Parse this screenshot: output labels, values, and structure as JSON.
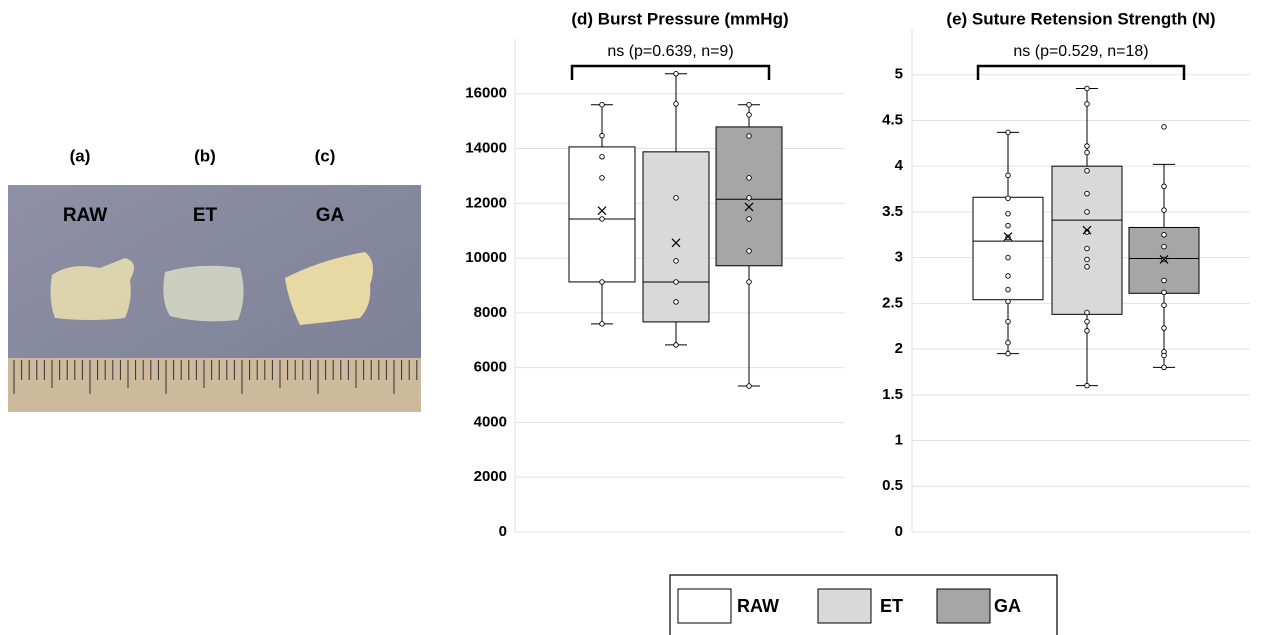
{
  "photo": {
    "panels": [
      "(a)",
      "(b)",
      "(c)"
    ],
    "samples": [
      "RAW",
      "ET",
      "GA"
    ]
  },
  "chart_data": [
    {
      "type": "box",
      "title": "(d) Burst Pressure (mmHg)",
      "annotation": "ns (p=0.639, n=9)",
      "categories": [
        "RAW",
        "ET",
        "GA"
      ],
      "colors": [
        "#ffffff",
        "#d9d9d9",
        "#a6a6a6"
      ],
      "boxes": [
        {
          "min": 7600,
          "q1": 9130,
          "median": 11430,
          "q3": 14060,
          "max": 15600,
          "mean": 11730,
          "points": [
            15600,
            14470,
            13700,
            12930,
            11430,
            9130,
            7600
          ]
        },
        {
          "min": 6830,
          "q1": 7670,
          "median": 9130,
          "q3": 13880,
          "max": 16730,
          "mean": 10560,
          "points": [
            16730,
            15630,
            12200,
            9900,
            9130,
            8400,
            6830
          ]
        },
        {
          "min": 5330,
          "q1": 9720,
          "median": 12150,
          "q3": 14790,
          "max": 15600,
          "mean": 11870,
          "points": [
            15600,
            15230,
            14460,
            12930,
            12200,
            11430,
            10260,
            9130,
            5330
          ]
        }
      ],
      "ylim": [
        0,
        18000
      ],
      "yticks": [
        0,
        2000,
        4000,
        6000,
        8000,
        10000,
        12000,
        14000,
        16000
      ],
      "grid": true
    },
    {
      "type": "box",
      "title": "(e) Suture Retension Strength (N)",
      "annotation": "ns (p=0.529, n=18)",
      "categories": [
        "RAW",
        "ET",
        "GA"
      ],
      "colors": [
        "#ffffff",
        "#d9d9d9",
        "#a6a6a6"
      ],
      "boxes": [
        {
          "min": 1.95,
          "q1": 2.54,
          "median": 3.18,
          "q3": 3.66,
          "max": 4.37,
          "mean": 3.23,
          "points": [
            4.37,
            3.9,
            3.65,
            3.48,
            3.35,
            3.22,
            3.0,
            2.8,
            2.65,
            2.52,
            2.3,
            2.07,
            1.95
          ]
        },
        {
          "min": 1.6,
          "q1": 2.38,
          "median": 3.41,
          "q3": 4.0,
          "max": 4.85,
          "mean": 3.3,
          "points": [
            4.85,
            4.68,
            4.22,
            4.15,
            3.95,
            3.7,
            3.5,
            3.28,
            3.1,
            2.98,
            2.9,
            2.4,
            2.3,
            2.2,
            1.6
          ]
        },
        {
          "min": 1.8,
          "q1": 2.61,
          "median": 2.99,
          "q3": 3.33,
          "max": 4.02,
          "mean": 2.98,
          "points": [
            4.43,
            3.78,
            3.52,
            3.25,
            3.12,
            2.98,
            2.75,
            2.62,
            2.48,
            2.23,
            1.97,
            1.93,
            1.8
          ]
        }
      ],
      "ylim": [
        0,
        5.5
      ],
      "yticks": [
        0,
        0.5,
        1,
        1.5,
        2,
        2.5,
        3,
        3.5,
        4,
        4.5,
        5
      ],
      "grid": true
    }
  ]
}
